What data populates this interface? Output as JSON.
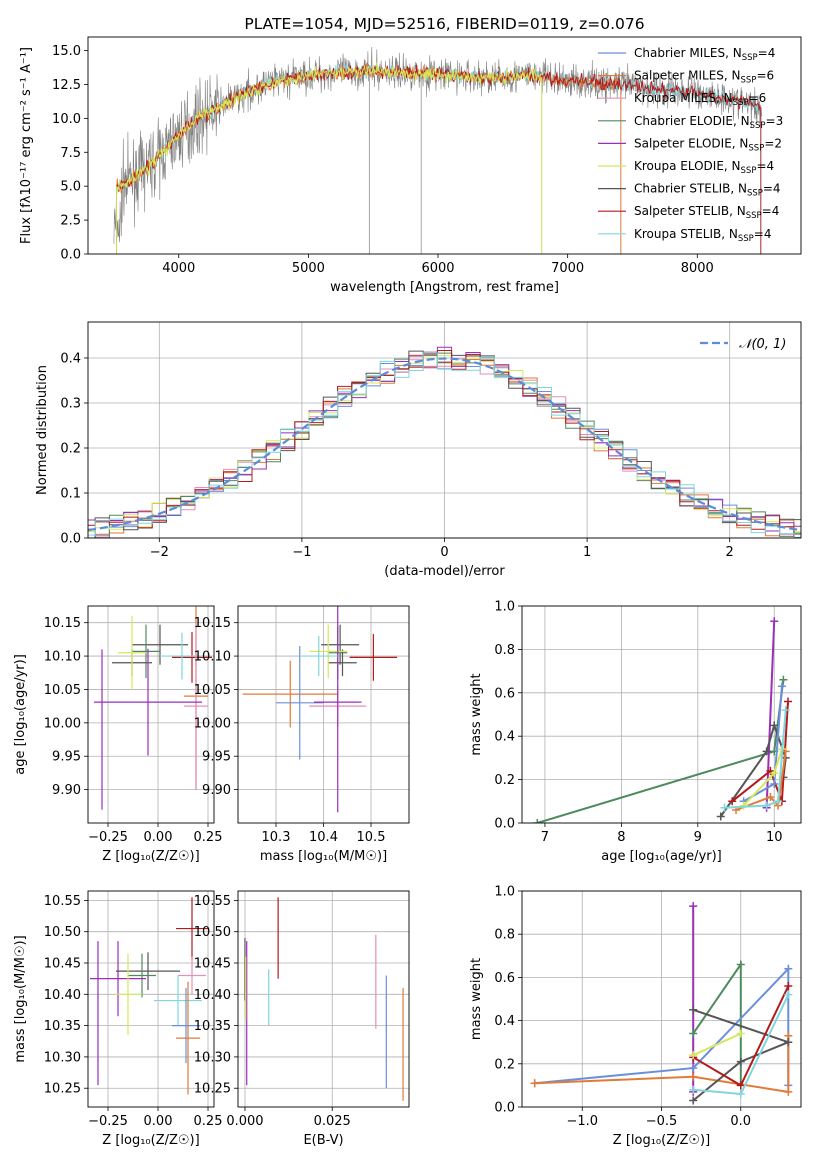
{
  "colors": {
    "chabrier_miles": "#6a8fdb",
    "salpeter_miles": "#e07b39",
    "kroupa_miles": "#e58fb8",
    "chabrier_elodie": "#4f8a5f",
    "salpeter_elodie": "#9b2fb8",
    "kroupa_elodie": "#d4e85a",
    "chabrier_stelib": "#555555",
    "salpeter_stelib": "#b31b1b",
    "kroupa_stelib": "#7fd6dd",
    "data_spectrum": "#808080",
    "normal_curve": "#5b8bd9",
    "grid": "#b0b0b0"
  },
  "chart_data": [
    {
      "id": "spectrum",
      "type": "line",
      "title": "PLATE=1054, MJD=52516, FIBERID=0119, z=0.076",
      "xlabel": "wavelength [Angstrom, rest frame]",
      "ylabel": "Flux [fλ10⁻¹⁷ erg cm⁻² s⁻¹ A⁻¹]",
      "xlim": [
        3300,
        8800
      ],
      "ylim": [
        0,
        16
      ],
      "xticks": [
        "4000",
        "5000",
        "6000",
        "7000",
        "8000"
      ],
      "yticks": [
        "0.0",
        "2.5",
        "5.0",
        "7.5",
        "10.0",
        "12.5",
        "15.0"
      ],
      "grid": false,
      "legend_position": "right",
      "legend": [
        {
          "label": "Chabrier MILES, N",
          "sub": "SSP",
          "suffix": "=4",
          "color_key": "chabrier_miles"
        },
        {
          "label": "Salpeter MILES, N",
          "sub": "SSP",
          "suffix": "=6",
          "color_key": "salpeter_miles"
        },
        {
          "label": "Kroupa MILES, N",
          "sub": "SSP",
          "suffix": "=6",
          "color_key": "kroupa_miles"
        },
        {
          "label": "Chabrier ELODIE, N",
          "sub": "SSP",
          "suffix": "=3",
          "color_key": "chabrier_elodie"
        },
        {
          "label": "Salpeter ELODIE, N",
          "sub": "SSP",
          "suffix": "=2",
          "color_key": "salpeter_elodie"
        },
        {
          "label": "Kroupa ELODIE, N",
          "sub": "SSP",
          "suffix": "=4",
          "color_key": "kroupa_elodie"
        },
        {
          "label": "Chabrier STELIB, N",
          "sub": "SSP",
          "suffix": "=4",
          "color_key": "chabrier_stelib"
        },
        {
          "label": "Salpeter STELIB, N",
          "sub": "SSP",
          "suffix": "=4",
          "color_key": "salpeter_stelib"
        },
        {
          "label": "Kroupa STELIB, N",
          "sub": "SSP",
          "suffix": "=4",
          "color_key": "kroupa_stelib"
        }
      ],
      "continuum": [
        [
          3550,
          5.0
        ],
        [
          3650,
          5.6
        ],
        [
          3750,
          6.3
        ],
        [
          3850,
          7.2
        ],
        [
          3950,
          8.3
        ],
        [
          4050,
          9.2
        ],
        [
          4150,
          10.0
        ],
        [
          4300,
          10.8
        ],
        [
          4500,
          11.8
        ],
        [
          4700,
          12.6
        ],
        [
          4900,
          13.0
        ],
        [
          5100,
          13.3
        ],
        [
          5300,
          13.4
        ],
        [
          5500,
          13.5
        ],
        [
          5700,
          13.4
        ],
        [
          5900,
          13.3
        ],
        [
          6100,
          13.2
        ],
        [
          6300,
          13.0
        ],
        [
          6500,
          13.0
        ],
        [
          6700,
          13.2
        ],
        [
          6900,
          12.9
        ],
        [
          7100,
          12.7
        ],
        [
          7300,
          12.6
        ],
        [
          7500,
          12.4
        ],
        [
          7700,
          12.1
        ],
        [
          7900,
          12.0
        ],
        [
          8100,
          11.7
        ],
        [
          8300,
          11.3
        ],
        [
          8500,
          10.8
        ]
      ],
      "data_range": [
        3500,
        8500
      ],
      "model_ranges": [
        {
          "color_key": "kroupa_stelib",
          "range": [
            3520,
            8490
          ]
        },
        {
          "color_key": "salpeter_miles",
          "range": [
            3520,
            7410
          ]
        },
        {
          "color_key": "salpeter_stelib",
          "range": [
            3520,
            8490
          ]
        },
        {
          "color_key": "kroupa_elodie",
          "range": [
            3520,
            6800
          ]
        }
      ]
    },
    {
      "id": "residual_hist",
      "type": "line",
      "xlabel": "(data-model)/error",
      "ylabel": "Normed distribution",
      "xlim": [
        -2.5,
        2.5
      ],
      "ylim": [
        0,
        0.48
      ],
      "xticks": [
        "−2",
        "−1",
        "0",
        "1",
        "2"
      ],
      "yticks": [
        "0.0",
        "0.1",
        "0.2",
        "0.3",
        "0.4"
      ],
      "grid": true,
      "legend_position": "top-right",
      "legend": [
        {
          "label": "𝒩(0, 1)",
          "style": "dashed",
          "color_key": "normal_curve"
        }
      ],
      "bin_width": 0.1,
      "series_keys": [
        "chabrier_miles",
        "salpeter_miles",
        "kroupa_miles",
        "chabrier_elodie",
        "salpeter_elodie",
        "kroupa_elodie",
        "chabrier_stelib",
        "salpeter_stelib",
        "kroupa_stelib"
      ]
    },
    {
      "id": "age_vs_Z",
      "type": "scatter",
      "xlabel": "Z [log₁₀(Z/Z☉)]",
      "ylabel": "age  [log₁₀(age/yr)]",
      "xlim": [
        -0.35,
        0.28
      ],
      "ylim": [
        9.85,
        10.175
      ],
      "xticks": [
        "−0.25",
        "0.00",
        "0.25"
      ],
      "yticks": [
        "9.90",
        "9.95",
        "10.00",
        "10.05",
        "10.10",
        "10.15"
      ],
      "grid": true,
      "points": [
        {
          "color_key": "chabrier_stelib",
          "x": 0.01,
          "y": 10.117,
          "xerr": 0.14,
          "yerr": 0.03
        },
        {
          "color_key": "chabrier_elodie",
          "x": -0.06,
          "y": 10.107,
          "xerr": 0.07,
          "yerr": 0.04
        },
        {
          "color_key": "chabrier_stelib",
          "x": -0.13,
          "y": 10.09,
          "xerr": 0.1,
          "yerr": 0.02
        },
        {
          "color_key": "kroupa_elodie",
          "x": -0.13,
          "y": 10.105,
          "xerr": 0.07,
          "yerr": 0.055
        },
        {
          "color_key": "salpeter_stelib",
          "x": 0.17,
          "y": 10.098,
          "xerr": 0.1,
          "yerr": 0.038
        },
        {
          "color_key": "kroupa_stelib",
          "x": 0.12,
          "y": 10.1,
          "xerr": 0.11,
          "yerr": 0.035
        },
        {
          "color_key": "salpeter_miles",
          "x": 0.19,
          "y": 10.04,
          "xerr": 0.06,
          "yerr": 0.14
        },
        {
          "color_key": "kroupa_miles",
          "x": 0.19,
          "y": 10.025,
          "xerr": 0.06,
          "yerr": 0.125
        },
        {
          "color_key": "salpeter_elodie",
          "x": -0.05,
          "y": 10.031,
          "xerr": 0.27,
          "yerr": 0.08
        },
        {
          "color_key": "salpeter_elodie",
          "x": -0.28,
          "y": 9.99,
          "xerr": 0,
          "yerr": 0.12
        }
      ]
    },
    {
      "id": "age_vs_mass",
      "type": "scatter",
      "xlabel": "mass [log₁₀(M/M☉)]",
      "ylabel": "",
      "xlim": [
        10.22,
        10.58
      ],
      "ylim": [
        9.85,
        10.175
      ],
      "xticks": [
        "10.3",
        "10.4",
        "10.5"
      ],
      "yticks": [
        "9.90",
        "9.95",
        "10.00",
        "10.05",
        "10.10",
        "10.15"
      ],
      "grid": true,
      "points": [
        {
          "color_key": "chabrier_stelib",
          "x": 10.435,
          "y": 10.117,
          "xerr": 0.04,
          "yerr": 0.03
        },
        {
          "color_key": "chabrier_elodie",
          "x": 10.43,
          "y": 10.105,
          "xerr": 0.02,
          "yerr": 0.04
        },
        {
          "color_key": "chabrier_stelib",
          "x": 10.44,
          "y": 10.09,
          "xerr": 0.03,
          "yerr": 0.02
        },
        {
          "color_key": "kroupa_elodie",
          "x": 10.41,
          "y": 10.107,
          "xerr": 0.04,
          "yerr": 0.04
        },
        {
          "color_key": "salpeter_stelib",
          "x": 10.505,
          "y": 10.098,
          "xerr": 0.05,
          "yerr": 0.035
        },
        {
          "color_key": "salpeter_miles",
          "x": 10.33,
          "y": 10.043,
          "xerr": 0.1,
          "yerr": 0.05
        },
        {
          "color_key": "chabrier_miles",
          "x": 10.35,
          "y": 10.03,
          "xerr": 0.05,
          "yerr": 0.085
        },
        {
          "color_key": "kroupa_miles",
          "x": 10.43,
          "y": 10.025,
          "xerr": 0.06,
          "yerr": 0.03
        },
        {
          "color_key": "salpeter_elodie",
          "x": 10.43,
          "y": 10.031,
          "xerr": 0.05,
          "yerr": 0.165
        },
        {
          "color_key": "kroupa_stelib",
          "x": 10.39,
          "y": 10.1,
          "xerr": 0.04,
          "yerr": 0.03
        }
      ]
    },
    {
      "id": "weight_vs_age",
      "type": "line",
      "xlabel": "age  [log₁₀(age/yr)]",
      "ylabel": "mass weight",
      "xlim": [
        6.7,
        10.35
      ],
      "ylim": [
        0,
        1
      ],
      "xticks": [
        "7",
        "8",
        "9",
        "10"
      ],
      "yticks": [
        "0.0",
        "0.2",
        "0.4",
        "0.6",
        "0.8",
        "1.0"
      ],
      "grid": true,
      "series": [
        {
          "color_key": "chabrier_elodie",
          "points": [
            [
              6.9,
              0.0
            ],
            [
              10.0,
              0.33
            ],
            [
              10.12,
              0.66
            ]
          ]
        },
        {
          "color_key": "salpeter_elodie",
          "points": [
            [
              9.9,
              0.07
            ],
            [
              10.0,
              0.93
            ]
          ]
        },
        {
          "color_key": "chabrier_stelib",
          "points": [
            [
              9.3,
              0.03
            ],
            [
              9.9,
              0.33
            ],
            [
              10.0,
              0.45
            ],
            [
              10.15,
              0.3
            ],
            [
              10.12,
              0.21
            ]
          ]
        },
        {
          "color_key": "salpeter_stelib",
          "points": [
            [
              9.45,
              0.1
            ],
            [
              9.95,
              0.24
            ],
            [
              10.1,
              0.1
            ],
            [
              10.18,
              0.56
            ]
          ]
        },
        {
          "color_key": "chabrier_miles",
          "points": [
            [
              9.6,
              0.1
            ],
            [
              10.0,
              0.18
            ],
            [
              10.1,
              0.63
            ]
          ]
        },
        {
          "color_key": "salpeter_miles",
          "points": [
            [
              9.5,
              0.06
            ],
            [
              9.95,
              0.12
            ],
            [
              10.05,
              0.08
            ],
            [
              10.15,
              0.33
            ]
          ]
        },
        {
          "color_key": "kroupa_elodie",
          "points": [
            [
              9.6,
              0.08
            ],
            [
              10.0,
              0.23
            ],
            [
              10.1,
              0.34
            ]
          ]
        },
        {
          "color_key": "kroupa_stelib",
          "points": [
            [
              9.35,
              0.07
            ],
            [
              9.9,
              0.08
            ],
            [
              10.05,
              0.1
            ],
            [
              10.15,
              0.52
            ]
          ]
        }
      ]
    },
    {
      "id": "mass_vs_Z",
      "type": "scatter",
      "xlabel": "Z [log₁₀(Z/Z☉)]",
      "ylabel": "mass [log₁₀(M/M☉)]",
      "xlim": [
        -0.35,
        0.28
      ],
      "ylim": [
        10.22,
        10.565
      ],
      "xticks": [
        "−0.25",
        "0.00",
        "0.25"
      ],
      "yticks": [
        "10.25",
        "10.30",
        "10.35",
        "10.40",
        "10.45",
        "10.50",
        "10.55"
      ],
      "grid": true,
      "points": [
        {
          "color_key": "salpeter_stelib",
          "x": 0.17,
          "y": 10.505,
          "xerr": 0.08,
          "yerr": 0.05
        },
        {
          "color_key": "chabrier_stelib",
          "x": -0.05,
          "y": 10.437,
          "xerr": 0.16,
          "yerr": 0.03
        },
        {
          "color_key": "chabrier_elodie",
          "x": -0.08,
          "y": 10.43,
          "xerr": 0.07,
          "yerr": 0.035
        },
        {
          "color_key": "kroupa_miles",
          "x": 0.17,
          "y": 10.43,
          "xerr": 0.07,
          "yerr": 0.03
        },
        {
          "color_key": "salpeter_elodie",
          "x": -0.2,
          "y": 10.425,
          "xerr": 0.14,
          "yerr": 0.06
        },
        {
          "color_key": "salpeter_elodie",
          "x": -0.3,
          "y": 10.37,
          "xerr": 0,
          "yerr": 0.115
        },
        {
          "color_key": "kroupa_elodie",
          "x": -0.15,
          "y": 10.4,
          "xerr": 0.07,
          "yerr": 0.065
        },
        {
          "color_key": "kroupa_stelib",
          "x": 0.1,
          "y": 10.39,
          "xerr": 0.12,
          "yerr": 0.04
        },
        {
          "color_key": "chabrier_miles",
          "x": 0.14,
          "y": 10.35,
          "xerr": 0.07,
          "yerr": 0.06
        },
        {
          "color_key": "salpeter_miles",
          "x": 0.15,
          "y": 10.33,
          "xerr": 0.06,
          "yerr": 0.09
        }
      ]
    },
    {
      "id": "mass_vs_ebv",
      "type": "scatter",
      "xlabel": "E(B-V)",
      "ylabel": "",
      "xlim": [
        -0.002,
        0.047
      ],
      "ylim": [
        10.22,
        10.565
      ],
      "xticks": [
        "0.000",
        "0.025"
      ],
      "yticks": [
        "10.25",
        "10.30",
        "10.35",
        "10.40",
        "10.45",
        "10.50",
        "10.55"
      ],
      "grid": true,
      "points": [
        {
          "color_key": "salpeter_stelib",
          "x": 0.0095,
          "y": 10.49,
          "xerr": 0,
          "yerr": 0.065
        },
        {
          "color_key": "chabrier_stelib",
          "x": 0.0,
          "y": 10.44,
          "xerr": 0,
          "yerr": 0.05
        },
        {
          "color_key": "salpeter_elodie",
          "x": 0.0005,
          "y": 10.37,
          "xerr": 0,
          "yerr": 0.115
        },
        {
          "color_key": "kroupa_elodie",
          "x": 0.0002,
          "y": 10.41,
          "xerr": 0,
          "yerr": 0.05
        },
        {
          "color_key": "kroupa_stelib",
          "x": 0.0068,
          "y": 10.395,
          "xerr": 0,
          "yerr": 0.045
        },
        {
          "color_key": "kroupa_miles",
          "x": 0.0375,
          "y": 10.42,
          "xerr": 0,
          "yerr": 0.075
        },
        {
          "color_key": "chabrier_miles",
          "x": 0.0405,
          "y": 10.34,
          "xerr": 0,
          "yerr": 0.09
        },
        {
          "color_key": "salpeter_miles",
          "x": 0.0453,
          "y": 10.32,
          "xerr": 0,
          "yerr": 0.09
        }
      ]
    },
    {
      "id": "weight_vs_Z",
      "type": "line",
      "xlabel": "Z [log₁₀(Z/Z☉)]",
      "ylabel": "mass weight",
      "xlim": [
        -1.38,
        0.38
      ],
      "ylim": [
        0,
        1
      ],
      "xticks": [
        "−1.0",
        "−0.5",
        "0.0"
      ],
      "yticks": [
        "0.0",
        "0.2",
        "0.4",
        "0.6",
        "0.8",
        "1.0"
      ],
      "grid": true,
      "series": [
        {
          "color_key": "salpeter_elodie",
          "points": [
            [
              -0.3,
              0.07
            ],
            [
              -0.3,
              0.93
            ]
          ]
        },
        {
          "color_key": "chabrier_elodie",
          "points": [
            [
              -0.3,
              0.34
            ],
            [
              0.0,
              0.66
            ],
            [
              0.0,
              0.1
            ]
          ]
        },
        {
          "color_key": "chabrier_miles",
          "points": [
            [
              -1.3,
              0.11
            ],
            [
              -0.3,
              0.18
            ],
            [
              0.3,
              0.64
            ],
            [
              0.3,
              0.1
            ]
          ]
        },
        {
          "color_key": "salpeter_miles",
          "points": [
            [
              -1.3,
              0.11
            ],
            [
              -0.3,
              0.14
            ],
            [
              0.3,
              0.07
            ],
            [
              0.3,
              0.33
            ]
          ]
        },
        {
          "color_key": "chabrier_stelib",
          "points": [
            [
              -0.3,
              0.03
            ],
            [
              0.0,
              0.21
            ],
            [
              0.3,
              0.3
            ],
            [
              -0.3,
              0.45
            ]
          ]
        },
        {
          "color_key": "salpeter_stelib",
          "points": [
            [
              -0.3,
              0.23
            ],
            [
              0.0,
              0.1
            ],
            [
              0.3,
              0.56
            ]
          ]
        },
        {
          "color_key": "kroupa_elodie",
          "points": [
            [
              -0.3,
              0.24
            ],
            [
              0.0,
              0.34
            ]
          ]
        },
        {
          "color_key": "kroupa_stelib",
          "points": [
            [
              -0.3,
              0.08
            ],
            [
              0.0,
              0.06
            ],
            [
              0.3,
              0.52
            ]
          ]
        }
      ]
    }
  ]
}
